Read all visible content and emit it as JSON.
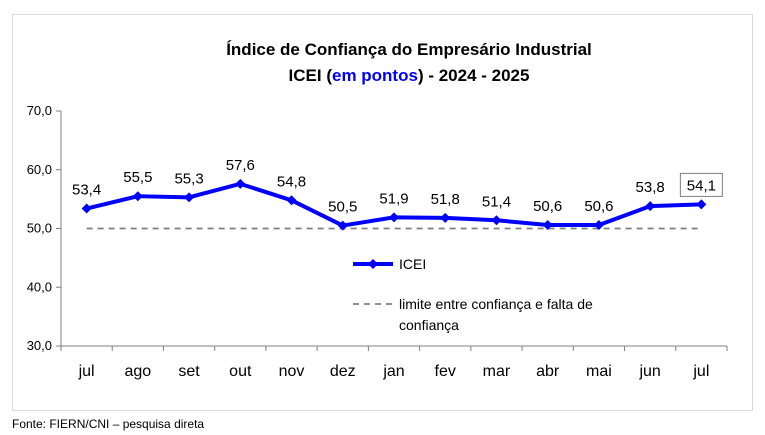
{
  "chart_data": {
    "type": "line",
    "title": "Índice de Confiança do Empresário Industrial",
    "subtitle_parts": [
      "ICEI (",
      "em pontos",
      ") - 2024 - 2025"
    ],
    "categories": [
      "jul",
      "ago",
      "set",
      "out",
      "nov",
      "dez",
      "jan",
      "fev",
      "mar",
      "abr",
      "mai",
      "jun",
      "jul"
    ],
    "series": [
      {
        "name": "ICEI",
        "values": [
          53.4,
          55.5,
          55.3,
          57.6,
          54.8,
          50.5,
          51.9,
          51.8,
          51.4,
          50.6,
          50.6,
          53.8,
          54.1
        ],
        "labels": [
          "53,4",
          "55,5",
          "55,3",
          "57,6",
          "54,8",
          "50,5",
          "51,9",
          "51,8",
          "51,4",
          "50,6",
          "50,6",
          "53,8",
          "54,1"
        ],
        "color": "#0000ff"
      }
    ],
    "reference_line": {
      "name_lines": [
        "limite entre confiança e falta de",
        "confiança"
      ],
      "value": 50,
      "color": "#808080"
    },
    "ylim": [
      30,
      70
    ],
    "yticks": [
      30,
      40,
      50,
      60,
      70
    ],
    "ytick_labels": [
      "30,0",
      "40,0",
      "50,0",
      "60,0",
      "70,0"
    ],
    "highlight_colors": {
      "subtitle_accent": "#0000ff"
    },
    "legend_position": "center",
    "grid": false
  },
  "source_note": "Fonte: FIERN/CNI – pesquisa direta"
}
